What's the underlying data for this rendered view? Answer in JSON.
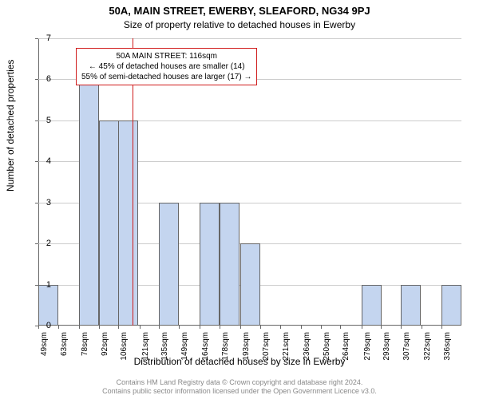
{
  "title": "50A, MAIN STREET, EWERBY, SLEAFORD, NG34 9PJ",
  "subtitle": "Size of property relative to detached houses in Ewerby",
  "ylabel": "Number of detached properties",
  "xlabel": "Distribution of detached houses by size in Ewerby",
  "footer_line1": "Contains HM Land Registry data © Crown copyright and database right 2024.",
  "footer_line2": "Contains public sector information licensed under the Open Government Licence v3.0.",
  "annotation": {
    "line1": "50A MAIN STREET: 116sqm",
    "line2": "← 45% of detached houses are smaller (14)",
    "line3": "55% of semi-detached houses are larger (17) →"
  },
  "chart": {
    "type": "histogram",
    "ylim": [
      0,
      7
    ],
    "ytick_step": 1,
    "background_color": "#ffffff",
    "grid_color": "#cccccc",
    "axis_color": "#666666",
    "bar_fill": "#c4d5ef",
    "bar_border": "#666666",
    "reference_color": "#d01c1c",
    "reference_x": 116,
    "bin_width_sqm": 14.3,
    "bins": [
      {
        "label": "49sqm",
        "x": 49,
        "count": 1
      },
      {
        "label": "63sqm",
        "x": 63,
        "count": 0
      },
      {
        "label": "78sqm",
        "x": 78,
        "count": 6
      },
      {
        "label": "92sqm",
        "x": 92,
        "count": 5
      },
      {
        "label": "106sqm",
        "x": 106,
        "count": 5
      },
      {
        "label": "121sqm",
        "x": 121,
        "count": 0
      },
      {
        "label": "135sqm",
        "x": 135,
        "count": 3
      },
      {
        "label": "149sqm",
        "x": 149,
        "count": 0
      },
      {
        "label": "164sqm",
        "x": 164,
        "count": 3
      },
      {
        "label": "178sqm",
        "x": 178,
        "count": 3
      },
      {
        "label": "193sqm",
        "x": 193,
        "count": 2
      },
      {
        "label": "207sqm",
        "x": 207,
        "count": 0
      },
      {
        "label": "221sqm",
        "x": 221,
        "count": 0
      },
      {
        "label": "236sqm",
        "x": 236,
        "count": 0
      },
      {
        "label": "250sqm",
        "x": 250,
        "count": 0
      },
      {
        "label": "264sqm",
        "x": 264,
        "count": 0
      },
      {
        "label": "279sqm",
        "x": 279,
        "count": 1
      },
      {
        "label": "293sqm",
        "x": 293,
        "count": 0
      },
      {
        "label": "307sqm",
        "x": 307,
        "count": 1
      },
      {
        "label": "322sqm",
        "x": 322,
        "count": 0
      },
      {
        "label": "336sqm",
        "x": 336,
        "count": 1
      }
    ]
  }
}
